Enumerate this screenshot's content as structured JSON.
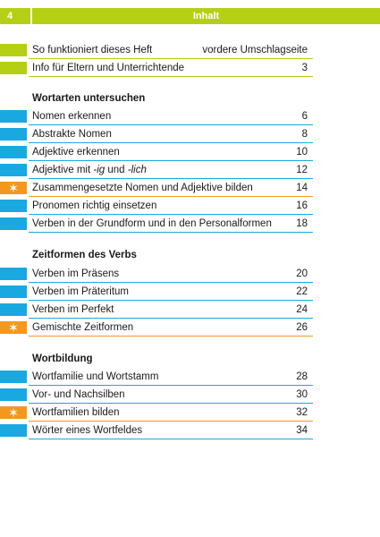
{
  "header": {
    "page_number": "4",
    "title": "Inhalt"
  },
  "colors": {
    "green": "#b5cf14",
    "blue": "#1aa8e0",
    "orange": "#f2981f"
  },
  "intro": [
    {
      "title": "So funktioniert dieses Heft",
      "page": "vordere Umschlagseite",
      "color": "green"
    },
    {
      "title": "Info für Eltern und Unterrichtende",
      "page": "3",
      "color": "green"
    }
  ],
  "sections": [
    {
      "heading": "Wortarten untersuchen",
      "items": [
        {
          "title": "Nomen erkennen",
          "page": "6",
          "color": "blue"
        },
        {
          "title": "Abstrakte Nomen",
          "page": "8",
          "color": "blue"
        },
        {
          "title": "Adjektive erkennen",
          "page": "10",
          "color": "blue"
        },
        {
          "title_parts": [
            "Adjektive mit ",
            "-ig",
            " und ",
            "-lich"
          ],
          "page": "12",
          "color": "blue"
        },
        {
          "title": "Zusammengesetzte Nomen und Adjektive bilden",
          "page": "14",
          "color": "orange",
          "star": "✶"
        },
        {
          "title": "Pronomen richtig einsetzen",
          "page": "16",
          "color": "blue"
        },
        {
          "title": "Verben in der Grundform und in den Personalformen",
          "page": "18",
          "color": "blue"
        }
      ]
    },
    {
      "heading": "Zeitformen des Verbs",
      "items": [
        {
          "title": "Verben im Präsens",
          "page": "20",
          "color": "blue"
        },
        {
          "title": "Verben im Präteritum",
          "page": "22",
          "color": "blue"
        },
        {
          "title": "Verben im Perfekt",
          "page": "24",
          "color": "blue"
        },
        {
          "title": "Gemischte Zeitformen",
          "page": "26",
          "color": "orange",
          "star": "✶"
        }
      ]
    },
    {
      "heading": "Wortbildung",
      "items": [
        {
          "title": "Wortfamilie und Wortstamm",
          "page": "28",
          "color": "blue"
        },
        {
          "title": "Vor- und Nachsilben",
          "page": "30",
          "color": "blue"
        },
        {
          "title": "Wortfamilien bilden",
          "page": "32",
          "color": "orange",
          "star": "✶"
        },
        {
          "title": "Wörter eines Wortfeldes",
          "page": "34",
          "color": "blue"
        }
      ]
    }
  ]
}
